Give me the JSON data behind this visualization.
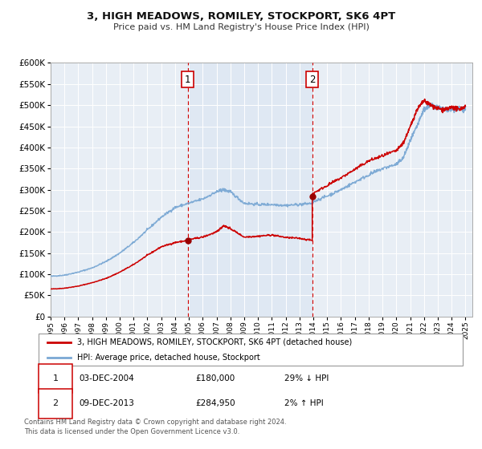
{
  "title": "3, HIGH MEADOWS, ROMILEY, STOCKPORT, SK6 4PT",
  "subtitle": "Price paid vs. HM Land Registry's House Price Index (HPI)",
  "ylim": [
    0,
    600000
  ],
  "yticks": [
    0,
    50000,
    100000,
    150000,
    200000,
    250000,
    300000,
    350000,
    400000,
    450000,
    500000,
    550000,
    600000
  ],
  "xlim_start": 1995.0,
  "xlim_end": 2025.5,
  "sale1_x": 2004.92,
  "sale1_y": 180000,
  "sale2_x": 2013.92,
  "sale2_y": 284950,
  "annotation1_date": "03-DEC-2004",
  "annotation1_price": "£180,000",
  "annotation1_hpi": "29% ↓ HPI",
  "annotation2_date": "09-DEC-2013",
  "annotation2_price": "£284,950",
  "annotation2_hpi": "2% ↑ HPI",
  "legend_line1": "3, HIGH MEADOWS, ROMILEY, STOCKPORT, SK6 4PT (detached house)",
  "legend_line2": "HPI: Average price, detached house, Stockport",
  "footnote": "Contains HM Land Registry data © Crown copyright and database right 2024.\nThis data is licensed under the Open Government Licence v3.0.",
  "color_red": "#cc0000",
  "color_blue": "#7aa8d4",
  "color_vline": "#cc0000",
  "bg_color": "#e8eef5",
  "grid_color": "#ffffff",
  "sale_dot_color": "#990000"
}
